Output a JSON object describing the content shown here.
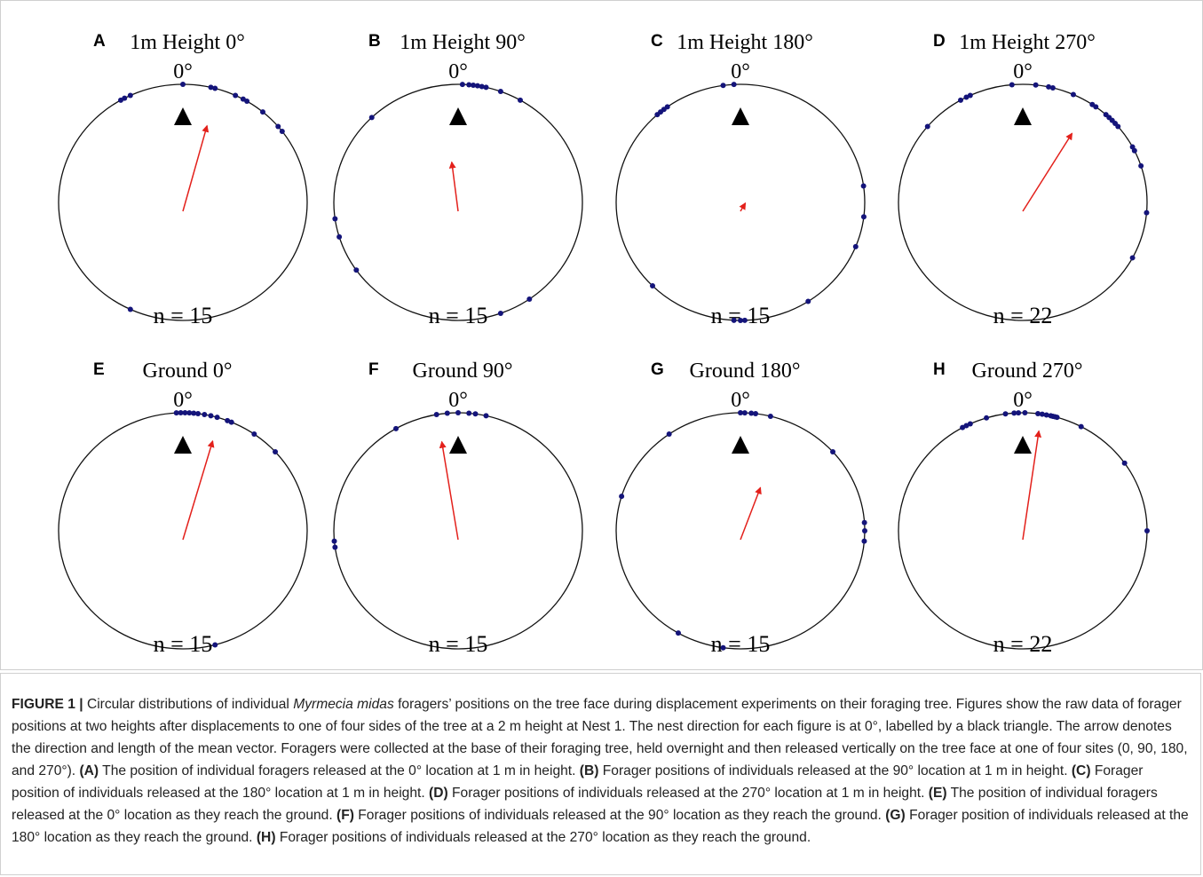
{
  "chart_data": [
    {
      "type": "circular",
      "panel": "A",
      "title": "1m Height 0°",
      "zero_label": "0°",
      "n_label": "n = 15",
      "points": [
        0,
        13,
        15,
        25,
        29,
        31,
        40,
        50,
        53,
        330,
        332,
        335,
        205
      ],
      "mean_angle": 15,
      "mean_length": 0.75,
      "point_color": "#14147a",
      "arrow_color": "#e3201b"
    },
    {
      "type": "circular",
      "panel": "B",
      "title": "1m Height 90°",
      "zero_label": "0°",
      "n_label": "n = 15",
      "points": [
        2,
        5,
        7,
        9,
        11,
        13,
        20,
        30,
        316,
        262,
        253,
        235,
        160,
        145
      ],
      "mean_angle": 353,
      "mean_length": 0.42,
      "point_color": "#14147a",
      "arrow_color": "#e3201b"
    },
    {
      "type": "circular",
      "panel": "C",
      "title": "1m Height 180°",
      "zero_label": "0°",
      "n_label": "n = 15",
      "points": [
        352,
        357,
        318,
        320,
        322,
        324,
        82,
        97,
        112,
        147,
        183,
        180,
        178,
        225
      ],
      "mean_angle": 30,
      "mean_length": 0.08,
      "point_color": "#14147a",
      "arrow_color": "#e3201b"
    },
    {
      "type": "circular",
      "panel": "D",
      "title": "1m Height 270°",
      "zero_label": "0°",
      "n_label": "n = 22",
      "points": [
        355,
        6,
        12,
        14,
        24,
        34,
        36,
        42,
        44,
        46,
        48,
        50,
        62,
        64,
        72,
        95,
        118,
        335,
        330,
        333,
        310
      ],
      "mean_angle": 31,
      "mean_length": 0.77,
      "point_color": "#14147a",
      "arrow_color": "#e3201b"
    },
    {
      "type": "circular",
      "panel": "E",
      "title": "Ground 0°",
      "zero_label": "0°",
      "n_label": "n = 15",
      "points": [
        357,
        359,
        1,
        3,
        5,
        7,
        10,
        13,
        16,
        21,
        23,
        35,
        48,
        165
      ],
      "mean_angle": 16,
      "mean_length": 0.87,
      "point_color": "#14147a",
      "arrow_color": "#e3201b"
    },
    {
      "type": "circular",
      "panel": "F",
      "title": "Ground 90°",
      "zero_label": "0°",
      "n_label": "n = 15",
      "points": [
        350,
        355,
        0,
        5,
        8,
        13,
        330,
        265,
        262
      ],
      "mean_angle": 351,
      "mean_length": 0.84,
      "point_color": "#14147a",
      "arrow_color": "#e3201b"
    },
    {
      "type": "circular",
      "panel": "G",
      "title": "Ground 180°",
      "zero_label": "0°",
      "n_label": "n = 15",
      "points": [
        0,
        2,
        5,
        7,
        14,
        325,
        48,
        287,
        86,
        90,
        95,
        210,
        188
      ],
      "mean_angle": 20,
      "mean_length": 0.47,
      "point_color": "#14147a",
      "arrow_color": "#e3201b"
    },
    {
      "type": "circular",
      "panel": "H",
      "title": "Ground 270°",
      "zero_label": "0°",
      "n_label": "n = 22",
      "points": [
        352,
        356,
        358,
        1,
        7,
        9,
        11,
        13,
        14,
        15,
        16,
        28,
        335,
        333,
        331,
        343,
        55,
        90
      ],
      "mean_angle": 8,
      "mean_length": 0.93,
      "point_color": "#14147a",
      "arrow_color": "#e3201b"
    }
  ],
  "caption": {
    "label": "FIGURE 1 |",
    "parts": [
      " Circular distributions of individual ",
      "Myrmecia midas",
      " foragers’ positions on the tree face during displacement experiments on their foraging tree. Figures show the raw data of forager positions at two heights after displacements to one of four sides of the tree at a 2 m height at Nest 1. The nest direction for each figure is at 0°, labelled by a black triangle. The arrow denotes the direction and length of the mean vector. Foragers were collected at the base of their foraging tree, held overnight and then released vertically on the tree face at one of four sites (0, 90, 180, and 270°). ",
      "(A)",
      " The position of individual foragers released at the 0° location at 1 m in height. ",
      "(B)",
      " Forager positions of individuals released at the 90° location at 1 m in height. ",
      "(C)",
      " Forager position of individuals released at the 180° location at 1 m in height. ",
      "(D)",
      " Forager positions of individuals released at the 270° location at 1 m in height. ",
      "(E)",
      " The position of individual foragers released at the 0° location as they reach the ground. ",
      "(F)",
      " Forager positions of individuals released at the 90° location as they reach the ground. ",
      "(G)",
      " Forager position of individuals released at the 180° location as they reach the ground. ",
      "(H)",
      " Forager positions of individuals released at the 270° location as they reach the ground."
    ]
  }
}
